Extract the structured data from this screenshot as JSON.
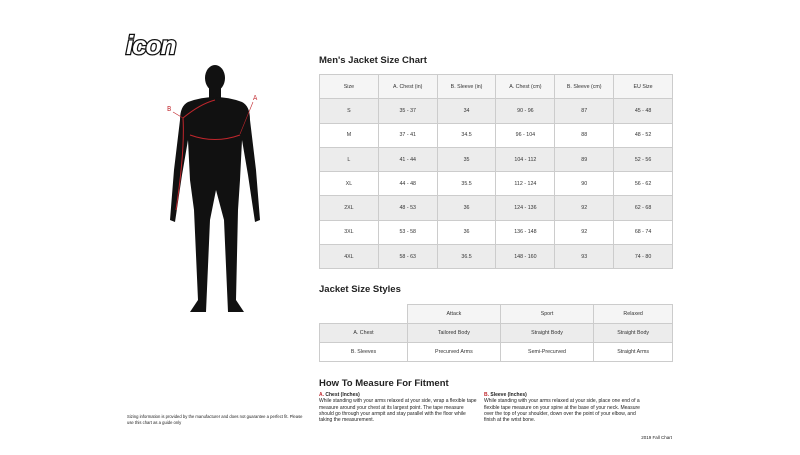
{
  "logo": "icon",
  "figure": {
    "label_a": "A",
    "label_b": "B"
  },
  "size_chart": {
    "title": "Men's Jacket Size Chart",
    "headers": [
      "Size",
      "A. Chest (in)",
      "B. Sleeve (in)",
      "A. Chest (cm)",
      "B. Sleeve (cm)",
      "EU Size"
    ],
    "rows": [
      [
        "S",
        "35 - 37",
        "34",
        "90 - 96",
        "87",
        "45 - 48"
      ],
      [
        "M",
        "37 - 41",
        "34.5",
        "96 - 104",
        "88",
        "48 - 52"
      ],
      [
        "L",
        "41 - 44",
        "35",
        "104 - 112",
        "89",
        "52 - 56"
      ],
      [
        "XL",
        "44 - 48",
        "35.5",
        "112 - 124",
        "90",
        "56 - 62"
      ],
      [
        "2XL",
        "48 - 53",
        "36",
        "124 - 136",
        "92",
        "62 - 68"
      ],
      [
        "3XL",
        "53 - 58",
        "36",
        "136 - 148",
        "92",
        "68 - 74"
      ],
      [
        "4XL",
        "58 - 63",
        "36.5",
        "148 - 160",
        "93",
        "74 - 80"
      ]
    ]
  },
  "styles": {
    "title": "Jacket Size Styles",
    "headers": [
      "Attack",
      "Sport",
      "Relaxed"
    ],
    "rows": [
      [
        "A. Chest",
        "Tailored Body",
        "Straight Body",
        "Straight Body"
      ],
      [
        "B. Sleeves",
        "Precurved Arms",
        "Semi-Precurved",
        "Straight Arms"
      ]
    ]
  },
  "measure": {
    "title": "How To Measure For Fitment",
    "chest_label": "A.",
    "chest_title": "Chest (Inches)",
    "chest_text": "While standing with your arms relaxed at your side, wrap a flexible tape measure around your chest at its largest point. The tape measure should go through your armpit and stay parallel with the floor while taking the measurement.",
    "sleeve_label": "B.",
    "sleeve_title": "Sleeve (Inches)",
    "sleeve_text": "While standing with your arms relaxed at your side, place one end of a flexible tape measure on your spine at the base of your neck. Measure over the top of your shoulder, down over the point of your elbow, and finish at the wrist bone."
  },
  "disclaimer": "Sizing information is provided by the manufacturer and does not guarantee a perfect fit. Please use this chart as a guide only",
  "footer": "2019 Fall Chart"
}
